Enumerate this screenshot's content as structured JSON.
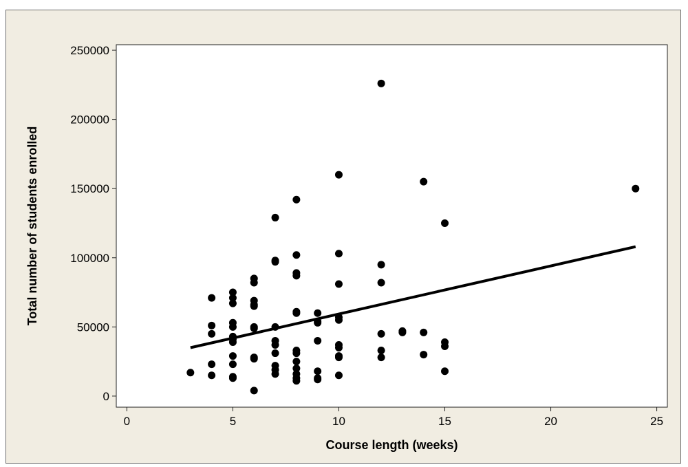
{
  "chart_data": {
    "type": "scatter",
    "title": "",
    "xlabel": "Course length (weeks)",
    "ylabel": "Total number of students enrolled",
    "xlim": [
      -0.5,
      25.5
    ],
    "ylim": [
      -8000,
      254000
    ],
    "xticks": [
      0,
      5,
      10,
      15,
      20,
      25
    ],
    "yticks": [
      0,
      50000,
      100000,
      150000,
      200000,
      250000
    ],
    "grid": false,
    "legend": "none",
    "colors": {
      "background": "#f1ede2",
      "plot_area": "#ffffff",
      "points": "#000000",
      "trend_line": "#000000"
    },
    "series": [
      {
        "type": "scatter",
        "points": [
          [
            3,
            17000
          ],
          [
            4,
            71000
          ],
          [
            4,
            51000
          ],
          [
            4,
            45000
          ],
          [
            4,
            23000
          ],
          [
            4,
            15000
          ],
          [
            5,
            75000
          ],
          [
            5,
            71000
          ],
          [
            5,
            67000
          ],
          [
            5,
            53000
          ],
          [
            5,
            50000
          ],
          [
            5,
            43000
          ],
          [
            5,
            41000
          ],
          [
            5,
            39000
          ],
          [
            5,
            29000
          ],
          [
            5,
            23000
          ],
          [
            5,
            14000
          ],
          [
            5,
            13000
          ],
          [
            6,
            85000
          ],
          [
            6,
            82000
          ],
          [
            6,
            69000
          ],
          [
            6,
            66000
          ],
          [
            6,
            65000
          ],
          [
            6,
            50000
          ],
          [
            6,
            49000
          ],
          [
            6,
            28000
          ],
          [
            6,
            27000
          ],
          [
            6,
            4000
          ],
          [
            7,
            129000
          ],
          [
            7,
            98000
          ],
          [
            7,
            97000
          ],
          [
            7,
            50000
          ],
          [
            7,
            40000
          ],
          [
            7,
            37000
          ],
          [
            7,
            31000
          ],
          [
            7,
            22000
          ],
          [
            7,
            19000
          ],
          [
            7,
            16000
          ],
          [
            8,
            142000
          ],
          [
            8,
            102000
          ],
          [
            8,
            89000
          ],
          [
            8,
            87000
          ],
          [
            8,
            61000
          ],
          [
            8,
            60000
          ],
          [
            8,
            33000
          ],
          [
            8,
            31000
          ],
          [
            8,
            25000
          ],
          [
            8,
            20000
          ],
          [
            8,
            16000
          ],
          [
            8,
            13000
          ],
          [
            8,
            11000
          ],
          [
            9,
            60000
          ],
          [
            9,
            54000
          ],
          [
            9,
            53000
          ],
          [
            9,
            40000
          ],
          [
            9,
            18000
          ],
          [
            9,
            13000
          ],
          [
            9,
            12000
          ],
          [
            10,
            160000
          ],
          [
            10,
            103000
          ],
          [
            10,
            81000
          ],
          [
            10,
            57000
          ],
          [
            10,
            55000
          ],
          [
            10,
            37000
          ],
          [
            10,
            35000
          ],
          [
            10,
            29000
          ],
          [
            10,
            28000
          ],
          [
            10,
            15000
          ],
          [
            12,
            226000
          ],
          [
            12,
            95000
          ],
          [
            12,
            82000
          ],
          [
            12,
            45000
          ],
          [
            12,
            33000
          ],
          [
            12,
            28000
          ],
          [
            13,
            47000
          ],
          [
            13,
            46000
          ],
          [
            14,
            155000
          ],
          [
            14,
            46000
          ],
          [
            14,
            30000
          ],
          [
            15,
            125000
          ],
          [
            15,
            39000
          ],
          [
            15,
            36000
          ],
          [
            15,
            18000
          ],
          [
            24,
            150000
          ]
        ]
      },
      {
        "type": "line",
        "x": [
          3,
          24
        ],
        "y": [
          35000,
          108000
        ]
      }
    ]
  }
}
